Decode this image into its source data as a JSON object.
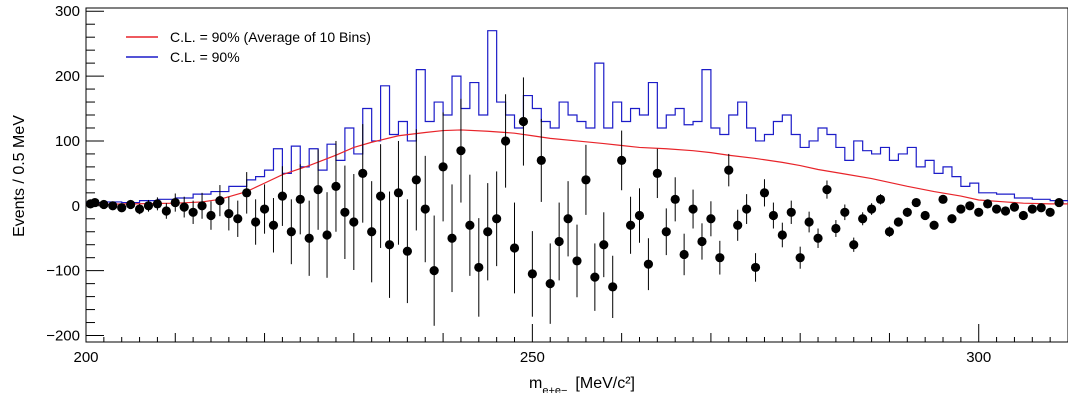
{
  "chart_data": {
    "type": "scatter",
    "xlabel": "m",
    "xlabel_sub": "e+e−",
    "xlabel_unit": "[MeV/c²]",
    "ylabel": "Events / 0.5 MeV",
    "xlim": [
      200,
      310
    ],
    "ylim": [
      -210,
      305
    ],
    "x_ticks": [
      200,
      250,
      300
    ],
    "y_ticks": [
      -200,
      -100,
      0,
      100,
      200,
      300
    ],
    "bin_width": 0.5,
    "colors": {
      "avg_line": "#e8242a",
      "cl_hist": "#1c1cc8",
      "points": "#000000"
    },
    "legend": {
      "position": "top-left",
      "entries": [
        {
          "label": "C.L. = 90% (Average of 10 Bins)",
          "color": "#e8242a"
        },
        {
          "label": "C.L. = 90%",
          "color": "#1c1cc8"
        }
      ]
    },
    "series": [
      {
        "name": "C.L. = 90% (Average of 10 Bins)",
        "kind": "line",
        "x": [
          200,
          205,
          210,
          213,
          215,
          218,
          220,
          222,
          225,
          228,
          230,
          232,
          235,
          238,
          240,
          242,
          245,
          248,
          250,
          252,
          255,
          258,
          260,
          262,
          265,
          268,
          270,
          272,
          275,
          278,
          280,
          282,
          285,
          288,
          290,
          292,
          295,
          298,
          300,
          303,
          305,
          308,
          310
        ],
        "y": [
          2,
          3,
          4,
          6,
          10,
          22,
          35,
          48,
          62,
          78,
          90,
          98,
          108,
          113,
          116,
          117,
          115,
          112,
          108,
          104,
          100,
          96,
          93,
          90,
          88,
          85,
          82,
          78,
          73,
          67,
          62,
          56,
          49,
          42,
          36,
          30,
          22,
          15,
          9,
          6,
          4,
          3,
          3
        ]
      },
      {
        "name": "C.L. = 90%",
        "kind": "step",
        "x": [
          200,
          202,
          204,
          206,
          208,
          210,
          212,
          214,
          216,
          218,
          219,
          220,
          221,
          222,
          223,
          224,
          225,
          226,
          227,
          228,
          229,
          230,
          231,
          232,
          233,
          234,
          235,
          236,
          237,
          238,
          239,
          240,
          241,
          242,
          243,
          244,
          245,
          246,
          247,
          248,
          249,
          250,
          251,
          252,
          253,
          254,
          255,
          256,
          257,
          258,
          259,
          260,
          261,
          262,
          263,
          264,
          265,
          266,
          267,
          268,
          269,
          270,
          271,
          272,
          273,
          274,
          275,
          276,
          277,
          278,
          279,
          280,
          281,
          282,
          283,
          284,
          285,
          286,
          287,
          288,
          289,
          290,
          291,
          292,
          293,
          294,
          295,
          296,
          297,
          298,
          299,
          300,
          302,
          304,
          306,
          308,
          310
        ],
        "y": [
          5,
          6,
          5,
          8,
          10,
          12,
          18,
          22,
          30,
          40,
          45,
          55,
          88,
          50,
          92,
          60,
          88,
          55,
          95,
          70,
          120,
          80,
          150,
          100,
          185,
          110,
          130,
          100,
          210,
          130,
          160,
          140,
          200,
          150,
          190,
          140,
          270,
          160,
          140,
          120,
          170,
          150,
          130,
          120,
          160,
          140,
          130,
          120,
          220,
          120,
          160,
          130,
          150,
          140,
          190,
          120,
          140,
          150,
          125,
          130,
          210,
          120,
          110,
          140,
          160,
          120,
          100,
          110,
          130,
          140,
          110,
          90,
          100,
          120,
          110,
          90,
          70,
          100,
          85,
          80,
          90,
          70,
          80,
          90,
          60,
          70,
          50,
          60,
          45,
          30,
          35,
          20,
          18,
          12,
          10,
          8,
          6
        ]
      },
      {
        "name": "",
        "kind": "points",
        "x": [
          200.5,
          201,
          202,
          203,
          204,
          205,
          206,
          207,
          208,
          209,
          210,
          211,
          212,
          213,
          214,
          215,
          216,
          217,
          218,
          219,
          220,
          221,
          222,
          223,
          224,
          225,
          226,
          227,
          228,
          229,
          230,
          231,
          232,
          233,
          234,
          235,
          236,
          237,
          238,
          239,
          240,
          241,
          242,
          243,
          244,
          245,
          246,
          247,
          248,
          249,
          250,
          251,
          252,
          253,
          254,
          255,
          256,
          257,
          258,
          259,
          260,
          261,
          262,
          263,
          264,
          265,
          266,
          267,
          268,
          269,
          270,
          271,
          272,
          273,
          274,
          275,
          276,
          277,
          278,
          279,
          280,
          281,
          282,
          283,
          284,
          285,
          286,
          287,
          288,
          289,
          290,
          291,
          292,
          293,
          294,
          295,
          296,
          297,
          298,
          299,
          300,
          301,
          302,
          303,
          304,
          305,
          306,
          307,
          308,
          309
        ],
        "y": [
          3,
          5,
          2,
          0,
          -3,
          2,
          -5,
          0,
          3,
          -8,
          5,
          -2,
          -10,
          0,
          -15,
          8,
          -12,
          -20,
          20,
          -25,
          -5,
          -30,
          15,
          -40,
          10,
          -50,
          25,
          -45,
          30,
          -10,
          -25,
          50,
          -40,
          15,
          -60,
          20,
          -70,
          40,
          -5,
          -100,
          60,
          -50,
          85,
          -30,
          -95,
          -40,
          -20,
          100,
          -65,
          130,
          -105,
          70,
          -120,
          -55,
          -20,
          -85,
          40,
          -110,
          -60,
          -125,
          70,
          -30,
          -15,
          -90,
          50,
          -40,
          10,
          -75,
          -5,
          -55,
          -20,
          -80,
          55,
          -30,
          -5,
          -95,
          20,
          -15,
          -45,
          -10,
          -80,
          -25,
          -50,
          25,
          -35,
          -10,
          -60,
          -20,
          -5,
          10,
          -40,
          -25,
          -10,
          5,
          -15,
          -30,
          10,
          -20,
          -5,
          0,
          -10,
          3,
          -5,
          -8,
          -2,
          -15,
          -5,
          -3,
          -10,
          5
        ],
        "yerr": [
          5,
          5,
          5,
          6,
          6,
          7,
          8,
          9,
          10,
          12,
          14,
          16,
          18,
          20,
          22,
          24,
          26,
          28,
          32,
          35,
          38,
          42,
          46,
          50,
          54,
          58,
          62,
          66,
          70,
          72,
          74,
          76,
          78,
          80,
          82,
          80,
          80,
          78,
          82,
          85,
          84,
          83,
          80,
          78,
          76,
          75,
          73,
          72,
          70,
          68,
          66,
          64,
          62,
          60,
          58,
          56,
          54,
          52,
          50,
          48,
          46,
          44,
          42,
          40,
          38,
          36,
          34,
          32,
          30,
          28,
          27,
          26,
          25,
          24,
          23,
          22,
          21,
          20,
          19,
          18,
          17,
          16,
          15,
          14,
          13,
          12,
          11,
          10,
          9,
          8,
          8,
          7,
          7,
          6,
          6,
          6,
          5,
          5,
          5,
          5,
          5,
          5,
          5,
          5,
          5,
          5,
          5,
          5,
          5,
          5
        ]
      }
    ]
  }
}
